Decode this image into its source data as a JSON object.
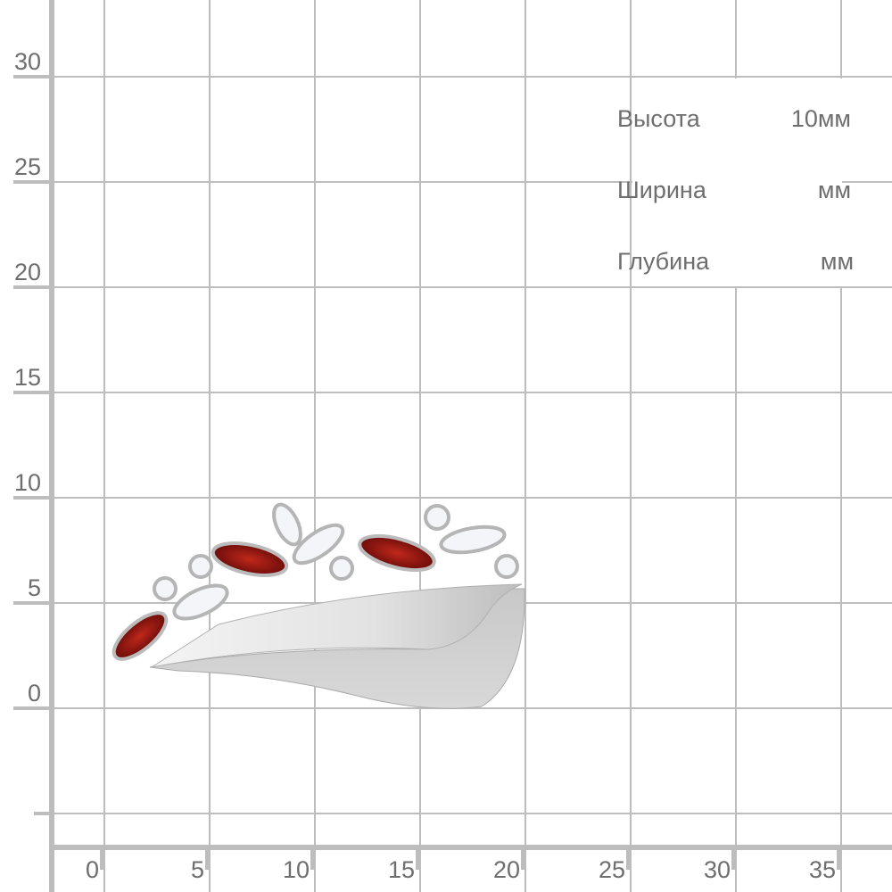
{
  "grid": {
    "x_ticks": [
      "0",
      "5",
      "10",
      "15",
      "20",
      "25",
      "30",
      "35"
    ],
    "y_ticks": [
      "0",
      "5",
      "10",
      "15",
      "20",
      "25",
      "30"
    ],
    "line_color": "#bdbdbd",
    "text_color": "#6e6e6e"
  },
  "dimensions": [
    {
      "label": "Высота",
      "value": "10мм"
    },
    {
      "label": "Ширина",
      "value": "мм"
    },
    {
      "label": "Глубина",
      "value": "мм"
    }
  ],
  "product": {
    "type": "brooch",
    "metal_color": "#d9d9d9",
    "stone_colors": {
      "garnet": "#8e1010",
      "cubic_zirconia": "#f2f4f7"
    }
  }
}
